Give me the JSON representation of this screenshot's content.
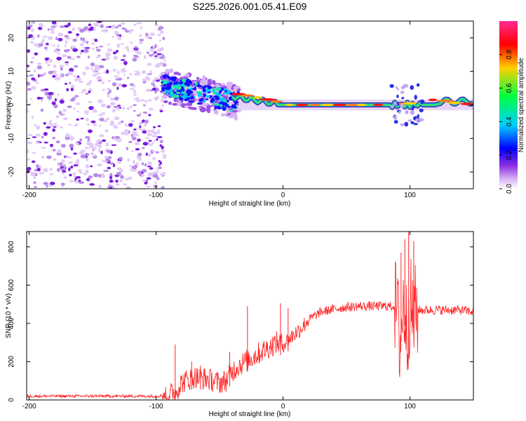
{
  "title": "S225.2026.001.05.41.E09",
  "chart_data": [
    {
      "type": "heatmap",
      "name": "spectrogram",
      "xlabel": "Height of straight line (km)",
      "ylabel": "Frequency (Hz)",
      "xlim": [
        -202,
        150
      ],
      "ylim": [
        -25,
        25
      ],
      "xticks": [
        -200,
        -100,
        0,
        100
      ],
      "yticks": [
        -20,
        -10,
        0,
        10,
        20
      ],
      "features": {
        "noise_region_x": [
          -202,
          -93
        ],
        "signal_center_start_hz": 5,
        "signal_center_end_hz": 0,
        "ridge_x": [
          -35,
          150
        ]
      },
      "colorbar": {
        "label": "Normalized spectral amplitude",
        "range": [
          0,
          1
        ],
        "ticks": [
          0.0,
          0.2,
          0.4,
          0.6,
          0.8
        ],
        "colors": [
          "#ffffff",
          "#d8b0f5",
          "#8a2be2",
          "#0000ff",
          "#00d0ff",
          "#00ff40",
          "#ffd000",
          "#ff0000",
          "#ff2a90"
        ]
      }
    },
    {
      "type": "line",
      "name": "snr",
      "xlabel": "Height of straight line (km)",
      "ylabel": "SNR (10 * v/v)",
      "xlim": [
        -202,
        150
      ],
      "ylim": [
        0,
        880
      ],
      "xticks": [
        -200,
        -100,
        0,
        100
      ],
      "yticks": [
        0,
        200,
        400,
        600,
        800
      ],
      "color": "#ff2020",
      "series": [
        {
          "name": "SNR",
          "x": [
            -202,
            -150,
            -100,
            -92,
            -85,
            -80,
            -70,
            -60,
            -50,
            -45,
            -40,
            -35,
            -30,
            -25,
            -20,
            -15,
            -10,
            -5,
            0,
            5,
            10,
            15,
            20,
            25,
            30,
            40,
            50,
            60,
            70,
            80,
            88,
            90,
            92,
            95,
            98,
            100,
            102,
            105,
            110,
            120,
            130,
            140,
            150
          ],
          "y": [
            20,
            20,
            20,
            25,
            40,
            90,
            120,
            110,
            90,
            100,
            150,
            180,
            200,
            220,
            240,
            260,
            280,
            300,
            290,
            320,
            350,
            380,
            420,
            440,
            460,
            475,
            485,
            490,
            490,
            490,
            490,
            480,
            300,
            500,
            350,
            520,
            420,
            470,
            470,
            470,
            470,
            470,
            460
          ]
        }
      ],
      "spikes": [
        {
          "x": -85,
          "y": 290
        },
        {
          "x": -72,
          "y": 200
        },
        {
          "x": -65,
          "y": 180
        },
        {
          "x": -42,
          "y": 250
        },
        {
          "x": -28,
          "y": 490
        },
        {
          "x": -2,
          "y": 505
        },
        {
          "x": 4,
          "y": 480
        },
        {
          "x": 93,
          "y": 770
        },
        {
          "x": 96,
          "y": 840
        },
        {
          "x": 99,
          "y": 880
        },
        {
          "x": 103,
          "y": 830
        }
      ]
    }
  ]
}
